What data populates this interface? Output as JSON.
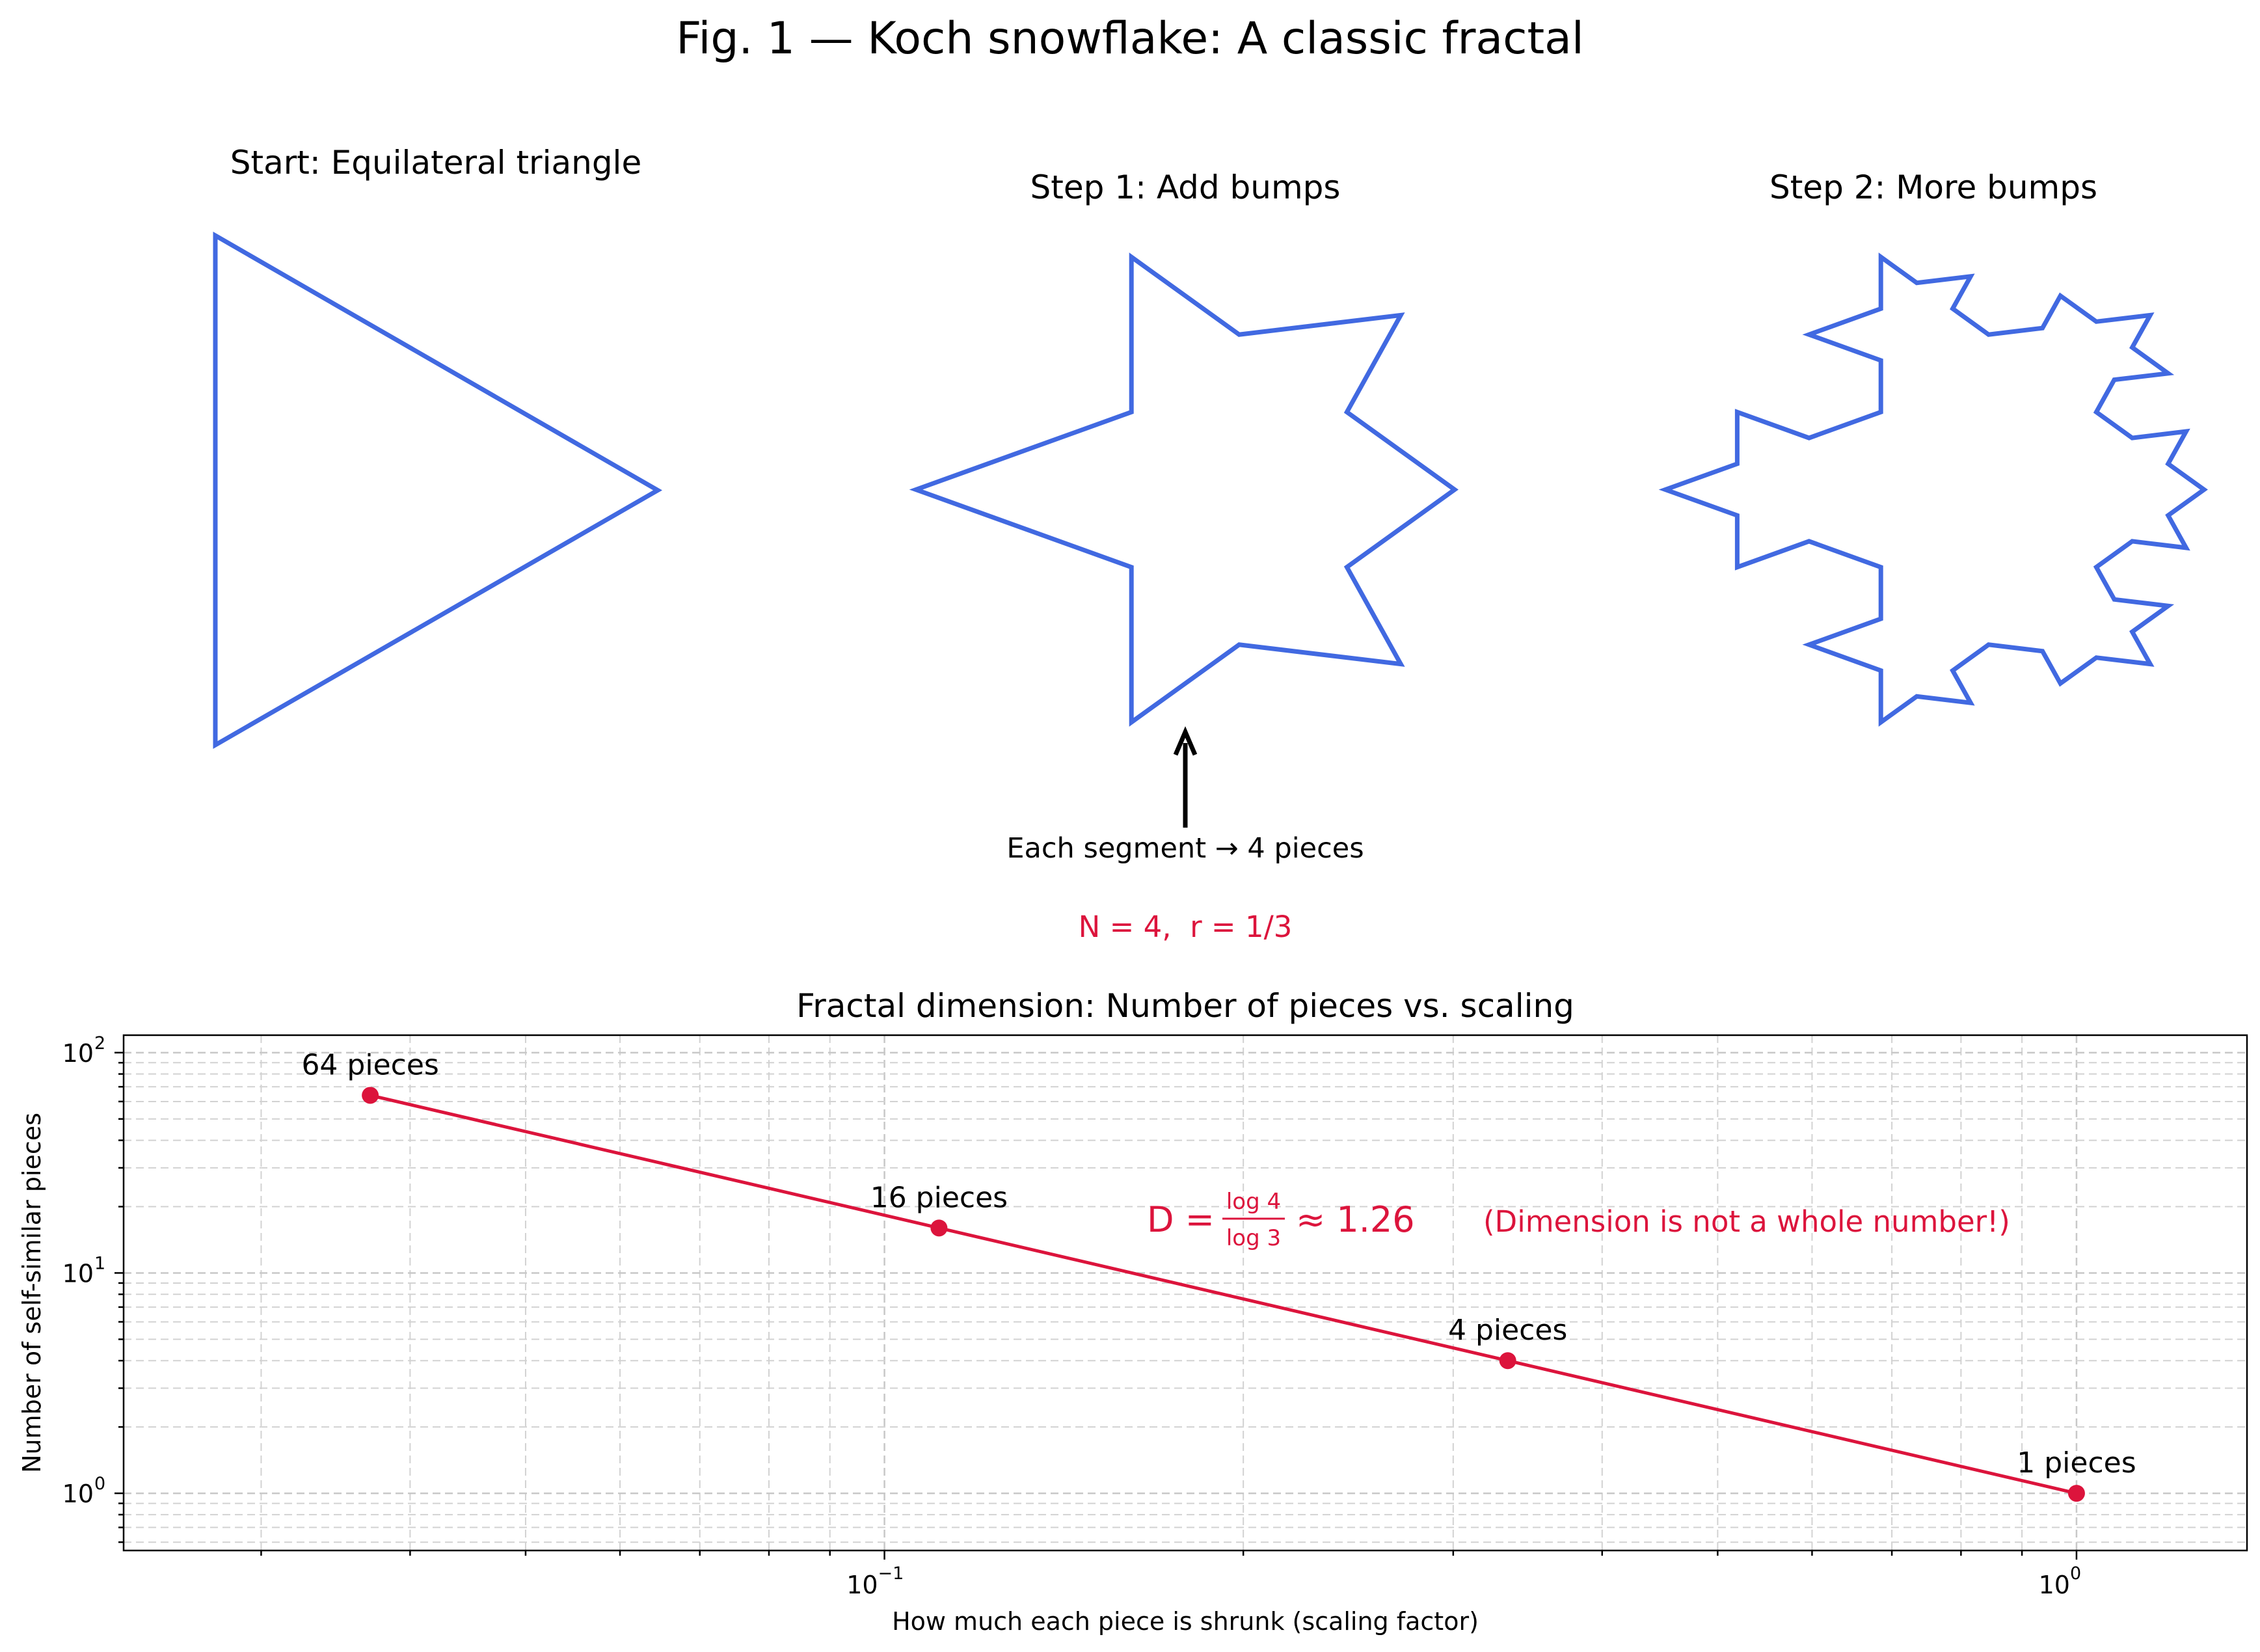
{
  "figure": {
    "title": "Fig. 1 — Koch snowflake: A classic fractal",
    "panels": [
      {
        "title": "Start: Equilateral triangle",
        "iteration": 0
      },
      {
        "title": "Step 1: Add bumps",
        "iteration": 1
      },
      {
        "title": "Step 2: More bumps",
        "iteration": 2
      }
    ],
    "arrow_note": "Each segment → 4 pieces",
    "params_note": "N = 4,  r = 1/3",
    "colors": {
      "snowflake": "#4169e1",
      "accent": "#dc143c"
    }
  },
  "chart_data": {
    "type": "line",
    "title": "Fractal dimension: Number of pieces vs. scaling",
    "xlabel": "How much each piece is shrunk (scaling factor)",
    "ylabel": "Number of self-similar pieces",
    "x_scale": "log",
    "y_scale": "log",
    "xlim": [
      0.023,
      1.39
    ],
    "ylim": [
      0.55,
      120
    ],
    "grid": true,
    "x_ticks": [
      {
        "base": "10",
        "exp": "−1",
        "value": 0.1
      },
      {
        "base": "10",
        "exp": "0",
        "value": 1
      }
    ],
    "y_ticks": [
      {
        "base": "10",
        "exp": "0",
        "value": 1
      },
      {
        "base": "10",
        "exp": "1",
        "value": 10
      },
      {
        "base": "10",
        "exp": "2",
        "value": 100
      }
    ],
    "series": [
      {
        "color": "#dc143c",
        "x": [
          0.037037,
          0.111111,
          0.333333,
          1.0
        ],
        "y": [
          64,
          16,
          4,
          1
        ],
        "labels": [
          "64 pieces",
          "16 pieces",
          "4 pieces",
          "1 pieces"
        ]
      }
    ],
    "annotations": {
      "formula_lhs": "D =",
      "formula_num": "log 4",
      "formula_den": "log 3",
      "formula_rhs": "≈ 1.26",
      "note": "(Dimension is not a whole number!)"
    }
  }
}
